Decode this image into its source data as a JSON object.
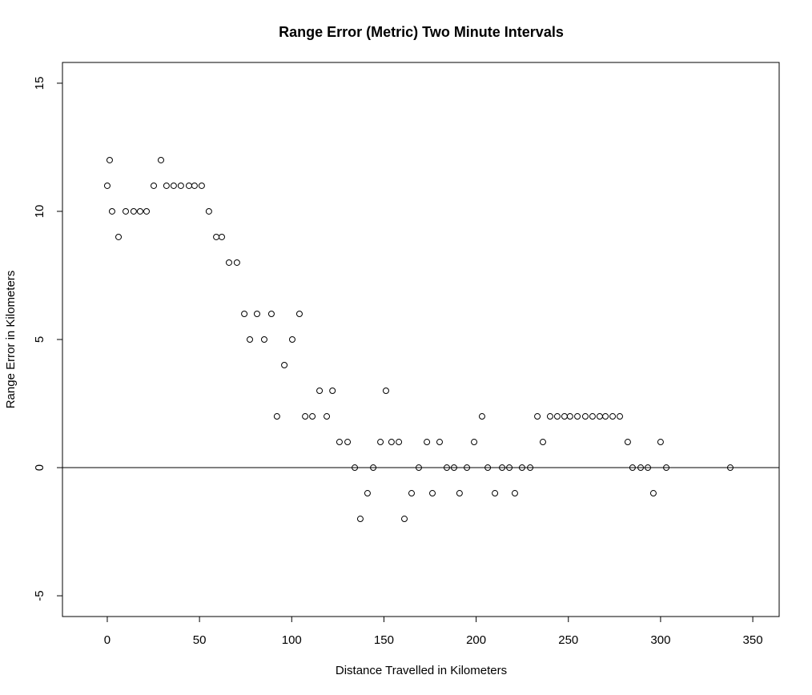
{
  "chart_data": {
    "type": "scatter",
    "title": "Range Error (Metric) Two Minute Intervals",
    "x_label": "Distance Travelled in Kilometers",
    "y_label": "Range Error in Kilometers",
    "x": [
      0,
      1.3,
      2.6,
      6.1,
      10,
      14.3,
      17.8,
      21.3,
      25.2,
      29.1,
      32.1,
      36,
      39.9,
      44.3,
      47.3,
      51.2,
      55.1,
      59.1,
      62.1,
      66,
      70.3,
      74.3,
      77.3,
      81.2,
      85.1,
      89,
      92,
      96,
      100.3,
      104.2,
      107.3,
      111.2,
      115.1,
      119,
      122.1,
      125.9,
      130.3,
      134.2,
      137.2,
      141.1,
      144.2,
      148.1,
      151.1,
      154.1,
      158.1,
      161.1,
      165,
      168.9,
      173.3,
      176.3,
      180.2,
      184.1,
      188,
      191,
      195,
      198.9,
      203.2,
      206.3,
      210.2,
      214.1,
      218,
      221,
      224.9,
      229.3,
      233.2,
      236.2,
      240.1,
      244,
      247.9,
      250.9,
      254.9,
      259.2,
      263.1,
      267,
      270.1,
      274,
      277.9,
      282.2,
      284.8,
      289.2,
      293.1,
      296.1,
      300,
      303.1,
      337.8
    ],
    "values": [
      11,
      12,
      10,
      9,
      10,
      10,
      10,
      10,
      11,
      12,
      11,
      11,
      11,
      11,
      11,
      11,
      10,
      9,
      9,
      8,
      8,
      6,
      5,
      6,
      5,
      6,
      2,
      4,
      5,
      6,
      2,
      2,
      3,
      2,
      3,
      1,
      1,
      0,
      -2,
      -1,
      0,
      1,
      3,
      1,
      1,
      -2,
      -1,
      0,
      1,
      -1,
      1,
      0,
      0,
      -1,
      0,
      1,
      2,
      0,
      -1,
      0,
      0,
      -1,
      0,
      0,
      2,
      1,
      2,
      2,
      2,
      2,
      2,
      2,
      2,
      2,
      2,
      2,
      2,
      1,
      0,
      0,
      0,
      -1,
      1,
      0,
      0
    ],
    "color": "#000000",
    "xlim": [
      -24.3,
      364.3
    ],
    "ylim": [
      -5.81,
      15.81
    ],
    "xticks": [
      0,
      50,
      100,
      150,
      200,
      250,
      300,
      350
    ],
    "yticks": [
      -5,
      0,
      5,
      10,
      15
    ],
    "hline": 0
  }
}
